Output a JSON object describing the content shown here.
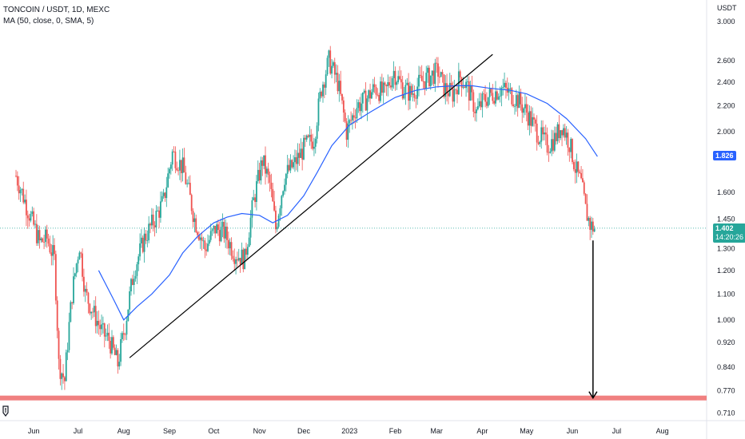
{
  "legend": {
    "title": "TONCOIN / USDT, 1D, MEXC",
    "indicator": "MA (50, close, 0, SMA, 5)"
  },
  "colors": {
    "up": "#26a69a",
    "down": "#ef5350",
    "ma": "#2962ff",
    "support": "#f08080",
    "current_badge": "#26a69a",
    "ma_badge": "#2962ff"
  },
  "chart_data": {
    "type": "candlestick",
    "y_axis_unit": "USDT",
    "y_scale": "log",
    "ylim": [
      0.69,
      3.25
    ],
    "y_ticks": [
      "3.000",
      "2.600",
      "2.400",
      "2.200",
      "2.000",
      "1.826",
      "1.600",
      "1.450",
      "1.402",
      "1.300",
      "1.200",
      "1.100",
      "1.000",
      "0.920",
      "0.840",
      "0.770",
      "0.710"
    ],
    "x_ticks": [
      "Jun",
      "Jul",
      "Aug",
      "Sep",
      "Oct",
      "Nov",
      "Dec",
      "2023",
      "Feb",
      "Mar",
      "Apr",
      "May",
      "Jun",
      "Jul",
      "Aug"
    ],
    "current_price": "1.402",
    "current_countdown": "14:20:26",
    "ma_last": "1.826",
    "support_level": 0.75,
    "price_path": [
      [
        "2022-05-20",
        1.7
      ],
      [
        "2022-05-28",
        1.5
      ],
      [
        "2022-06-05",
        1.33
      ],
      [
        "2022-06-10",
        1.35
      ],
      [
        "2022-06-15",
        1.25
      ],
      [
        "2022-06-18",
        0.85
      ],
      [
        "2022-06-22",
        0.8
      ],
      [
        "2022-06-27",
        1.1
      ],
      [
        "2022-07-02",
        1.32
      ],
      [
        "2022-07-06",
        1.1
      ],
      [
        "2022-07-12",
        1.02
      ],
      [
        "2022-07-18",
        0.95
      ],
      [
        "2022-07-22",
        0.93
      ],
      [
        "2022-07-28",
        0.85
      ],
      [
        "2022-08-02",
        0.98
      ],
      [
        "2022-08-08",
        1.2
      ],
      [
        "2022-08-15",
        1.35
      ],
      [
        "2022-08-22",
        1.45
      ],
      [
        "2022-08-28",
        1.55
      ],
      [
        "2022-09-03",
        1.85
      ],
      [
        "2022-09-10",
        1.75
      ],
      [
        "2022-09-18",
        1.45
      ],
      [
        "2022-09-25",
        1.3
      ],
      [
        "2022-10-02",
        1.4
      ],
      [
        "2022-10-08",
        1.38
      ],
      [
        "2022-10-15",
        1.28
      ],
      [
        "2022-10-22",
        1.25
      ],
      [
        "2022-10-28",
        1.55
      ],
      [
        "2022-11-03",
        1.8
      ],
      [
        "2022-11-08",
        1.65
      ],
      [
        "2022-11-12",
        1.4
      ],
      [
        "2022-11-18",
        1.7
      ],
      [
        "2022-11-25",
        1.78
      ],
      [
        "2022-12-02",
        1.9
      ],
      [
        "2022-12-08",
        1.95
      ],
      [
        "2022-12-13",
        2.35
      ],
      [
        "2022-12-18",
        2.6
      ],
      [
        "2022-12-24",
        2.4
      ],
      [
        "2022-12-30",
        2.0
      ],
      [
        "2023-01-06",
        2.2
      ],
      [
        "2023-01-12",
        2.25
      ],
      [
        "2023-01-18",
        2.35
      ],
      [
        "2023-01-25",
        2.3
      ],
      [
        "2023-01-31",
        2.5
      ],
      [
        "2023-02-06",
        2.35
      ],
      [
        "2023-02-12",
        2.3
      ],
      [
        "2023-02-18",
        2.4
      ],
      [
        "2023-02-24",
        2.45
      ],
      [
        "2023-03-02",
        2.5
      ],
      [
        "2023-03-06",
        2.35
      ],
      [
        "2023-03-12",
        2.3
      ],
      [
        "2023-03-17",
        2.45
      ],
      [
        "2023-03-22",
        2.35
      ],
      [
        "2023-03-28",
        2.15
      ],
      [
        "2023-04-02",
        2.25
      ],
      [
        "2023-04-08",
        2.3
      ],
      [
        "2023-04-14",
        2.35
      ],
      [
        "2023-04-20",
        2.3
      ],
      [
        "2023-04-25",
        2.25
      ],
      [
        "2023-05-01",
        2.15
      ],
      [
        "2023-05-08",
        2.0
      ],
      [
        "2023-05-15",
        1.9
      ],
      [
        "2023-05-20",
        1.95
      ],
      [
        "2023-05-25",
        2.05
      ],
      [
        "2023-05-30",
        1.92
      ],
      [
        "2023-06-03",
        1.75
      ],
      [
        "2023-06-07",
        1.65
      ],
      [
        "2023-06-10",
        1.5
      ],
      [
        "2023-06-13",
        1.42
      ],
      [
        "2023-06-16",
        1.4
      ]
    ],
    "ma_path": [
      [
        "2022-07-15",
        1.2
      ],
      [
        "2022-07-25",
        1.08
      ],
      [
        "2022-08-01",
        1.0
      ],
      [
        "2022-08-10",
        1.05
      ],
      [
        "2022-08-20",
        1.1
      ],
      [
        "2022-09-01",
        1.18
      ],
      [
        "2022-09-10",
        1.28
      ],
      [
        "2022-09-20",
        1.36
      ],
      [
        "2022-10-01",
        1.43
      ],
      [
        "2022-10-10",
        1.46
      ],
      [
        "2022-10-20",
        1.48
      ],
      [
        "2022-11-01",
        1.47
      ],
      [
        "2022-11-10",
        1.43
      ],
      [
        "2022-11-20",
        1.47
      ],
      [
        "2022-12-01",
        1.58
      ],
      [
        "2022-12-10",
        1.72
      ],
      [
        "2022-12-20",
        1.9
      ],
      [
        "2023-01-01",
        2.05
      ],
      [
        "2023-01-15",
        2.15
      ],
      [
        "2023-02-01",
        2.27
      ],
      [
        "2023-02-15",
        2.33
      ],
      [
        "2023-03-01",
        2.36
      ],
      [
        "2023-03-15",
        2.37
      ],
      [
        "2023-03-25",
        2.37
      ],
      [
        "2023-04-05",
        2.35
      ],
      [
        "2023-04-20",
        2.33
      ],
      [
        "2023-05-01",
        2.3
      ],
      [
        "2023-05-15",
        2.22
      ],
      [
        "2023-05-28",
        2.1
      ],
      [
        "2023-06-10",
        1.95
      ],
      [
        "2023-06-18",
        1.826
      ]
    ],
    "trendlines": [
      {
        "from": [
          "2022-08-05",
          0.87
        ],
        "to": [
          "2023-04-08",
          2.66
        ]
      }
    ],
    "arrow": {
      "from": [
        "2023-06-15",
        1.34
      ],
      "to": [
        "2023-06-15",
        0.75
      ]
    }
  }
}
